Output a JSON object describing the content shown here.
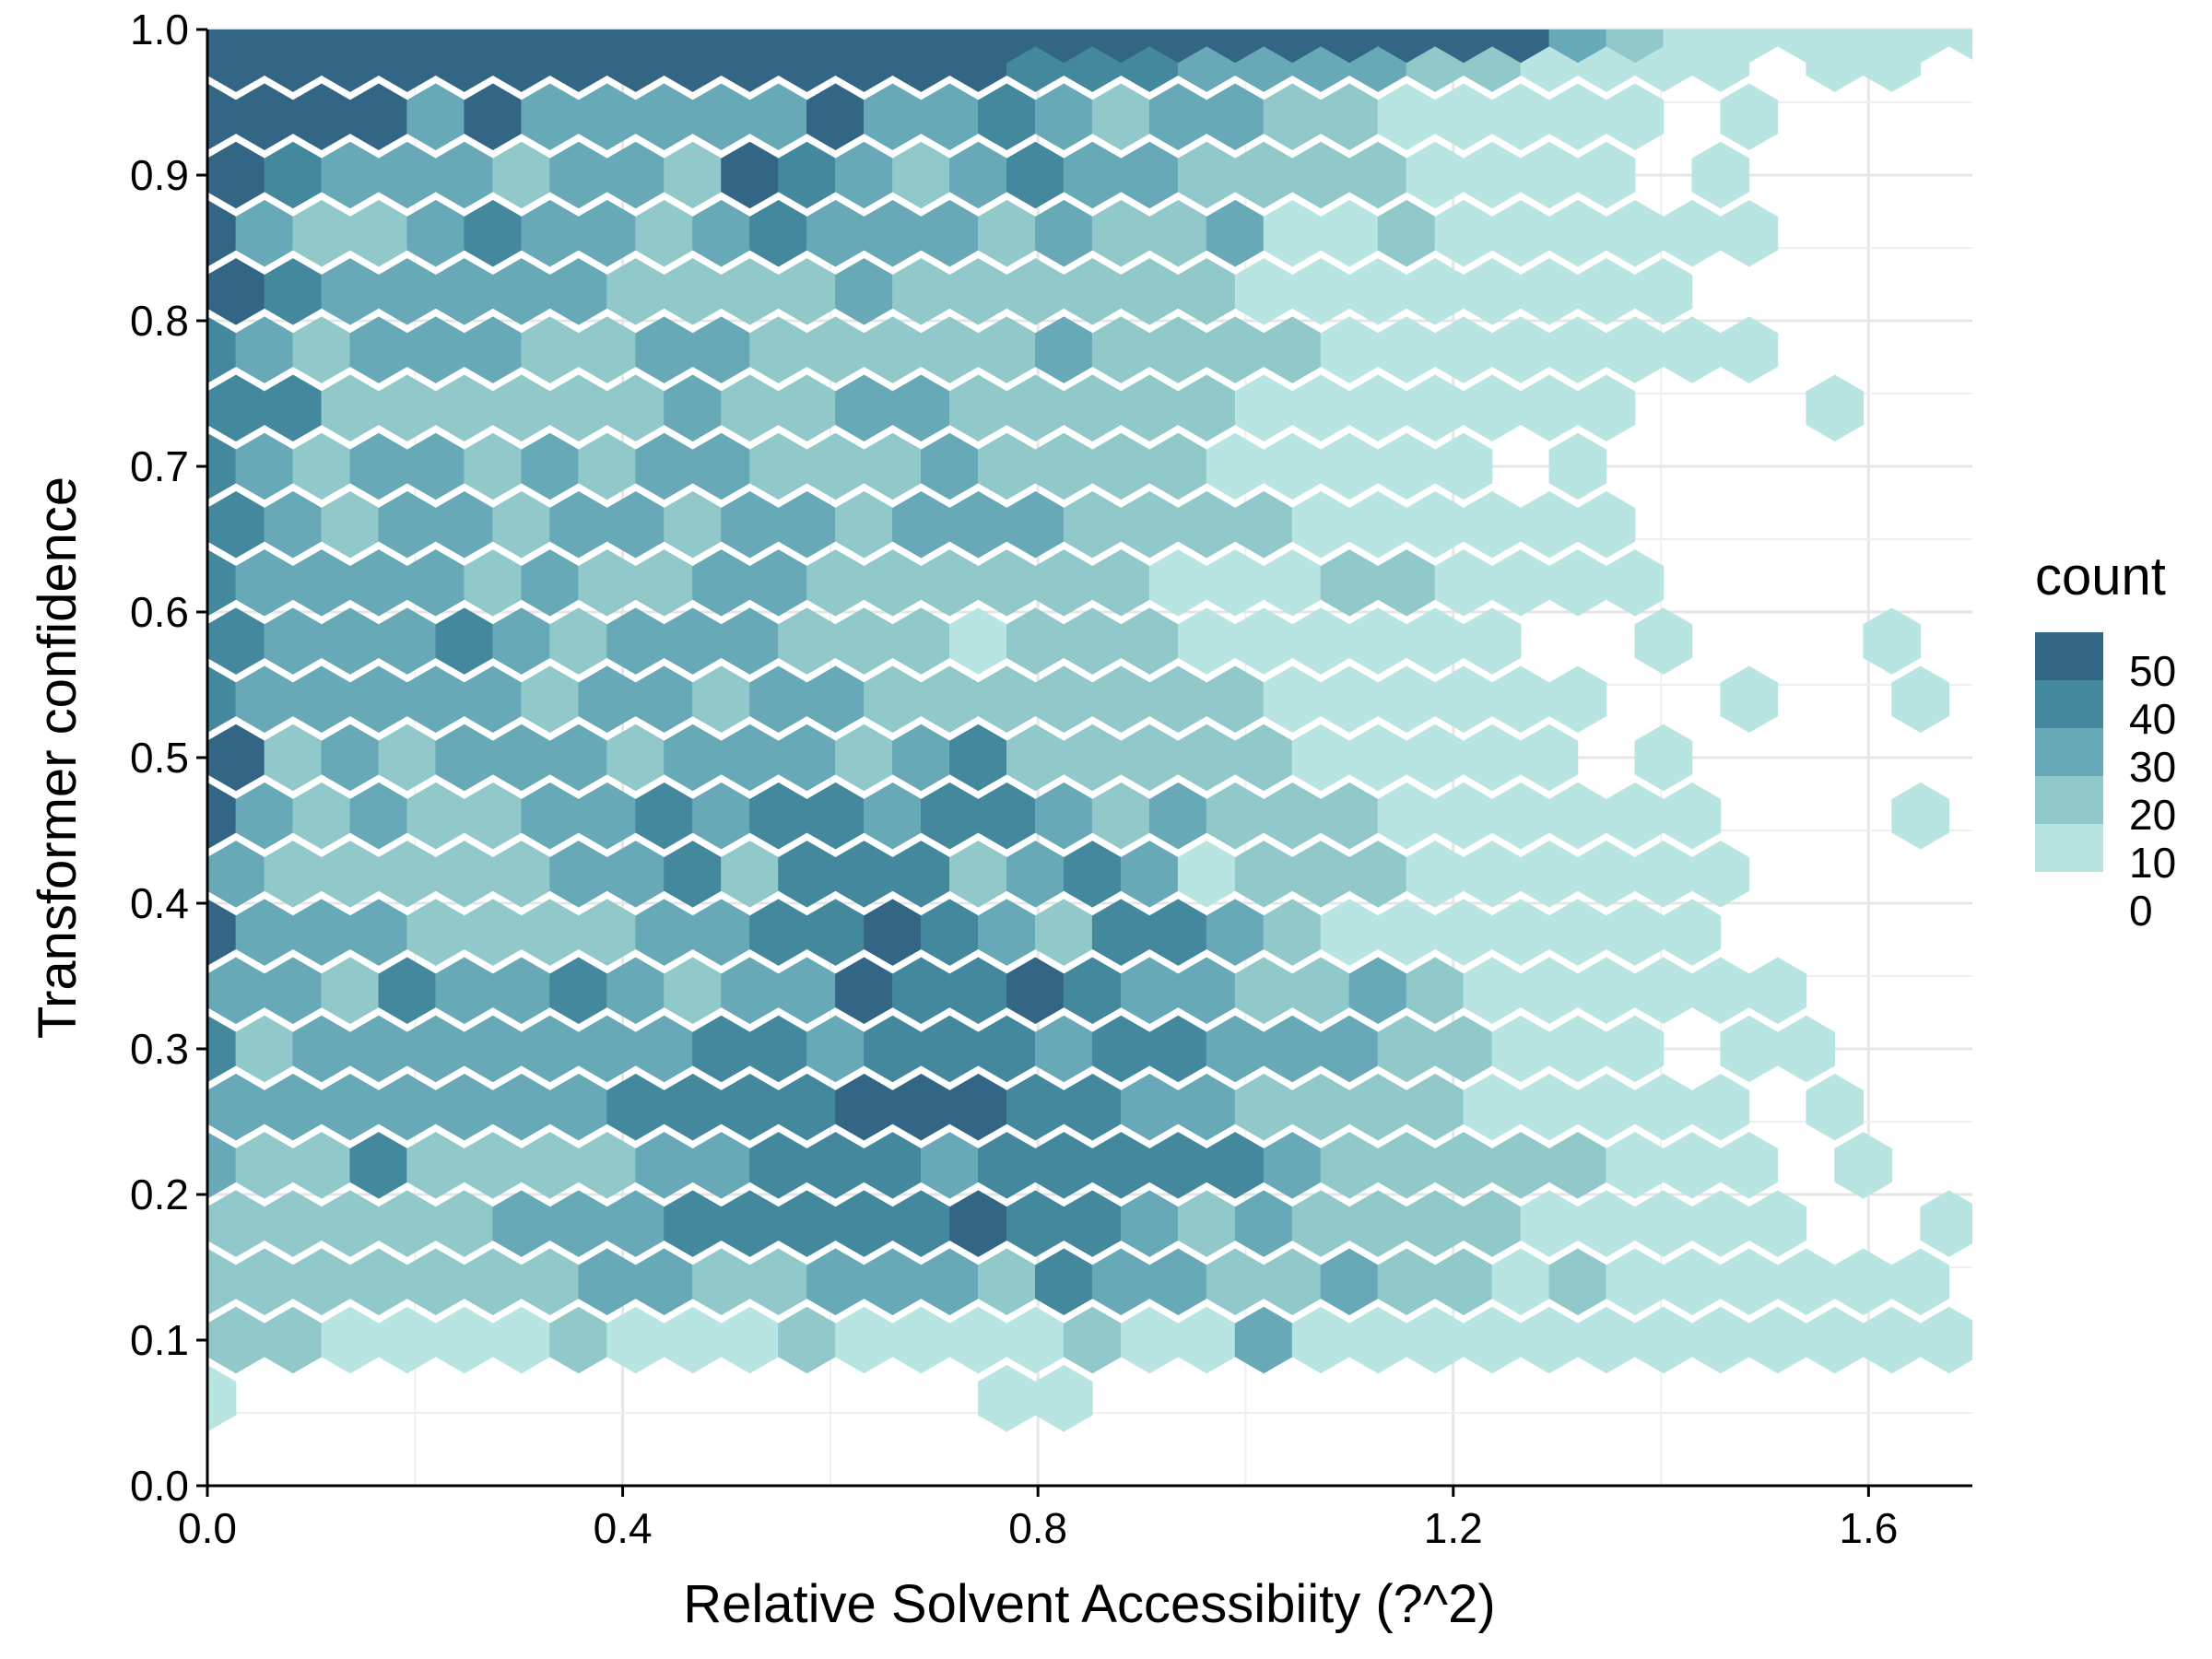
{
  "chart_data": {
    "type": "hexbin",
    "xlabel": "Relative Solvent Accessibiity (?^2)",
    "ylabel": "Transformer confidence",
    "xlim": [
      0.0,
      1.7
    ],
    "ylim": [
      0.0,
      1.0
    ],
    "x_ticks": [
      0.0,
      0.4,
      0.8,
      1.2,
      1.6
    ],
    "x_tick_labels": [
      "0.0",
      "0.4",
      "0.8",
      "1.2",
      "1.6"
    ],
    "y_ticks": [
      0.0,
      0.1,
      0.2,
      0.3,
      0.4,
      0.5,
      0.6,
      0.7,
      0.8,
      0.9,
      1.0
    ],
    "y_tick_labels": [
      "0.0",
      "0.1",
      "0.2",
      "0.3",
      "0.4",
      "0.5",
      "0.6",
      "0.7",
      "0.8",
      "0.9",
      "1.0"
    ],
    "grid": true,
    "legend": {
      "title": "count",
      "position": "right",
      "labels": [
        "50",
        "40",
        "30",
        "20",
        "10",
        "0"
      ],
      "colors": [
        "#336685",
        "#44889e",
        "#68a9b7",
        "#91c8ca",
        "#b8e4e2"
      ],
      "breaks": [
        0,
        10,
        20,
        30,
        40,
        50
      ]
    },
    "hex_size_x": 0.0275,
    "hex_rows": [
      {
        "y": 0.06,
        "x0": 0.0,
        "counts": [
          3,
          0,
          0,
          0,
          0,
          0,
          0,
          0,
          0,
          0,
          0,
          0,
          0,
          0,
          2,
          2,
          0,
          0,
          0,
          0,
          0,
          0,
          0,
          0,
          0,
          0,
          0,
          0,
          0,
          0,
          0,
          0,
          0,
          0,
          0,
          0
        ]
      },
      {
        "y": 0.1,
        "x0": 0.0275,
        "counts": [
          14,
          12,
          6,
          5,
          4,
          6,
          12,
          8,
          5,
          6,
          14,
          8,
          6,
          5,
          6,
          14,
          8,
          6,
          22,
          8,
          5,
          6,
          4,
          5,
          4,
          4,
          3,
          2,
          3,
          2,
          4,
          0,
          4,
          0,
          3,
          0,
          0,
          0,
          0,
          0,
          0,
          0,
          0,
          0,
          0,
          3,
          0,
          0,
          0,
          0,
          0,
          0,
          0,
          0,
          3
        ]
      },
      {
        "y": 0.14,
        "x0": 0.0,
        "counts": [
          16,
          14,
          12,
          14,
          14,
          16,
          18,
          22,
          24,
          16,
          18,
          22,
          26,
          24,
          18,
          32,
          24,
          20,
          16,
          14,
          24,
          12,
          10,
          8,
          10,
          6,
          6,
          5,
          4,
          3,
          4,
          0,
          3,
          3,
          2,
          0,
          3,
          0,
          3,
          0,
          0,
          0,
          0,
          0,
          0,
          0,
          0,
          0,
          0,
          0,
          0,
          0,
          0,
          2
        ]
      },
      {
        "y": 0.18,
        "x0": 0.0275,
        "counts": [
          18,
          12,
          14,
          16,
          18,
          20,
          22,
          26,
          34,
          30,
          32,
          34,
          38,
          40,
          34,
          32,
          22,
          18,
          24,
          16,
          14,
          12,
          10,
          8,
          6,
          6,
          5,
          4,
          0,
          0,
          2,
          3,
          2,
          0,
          2,
          0,
          0,
          0,
          0,
          0,
          0,
          0,
          0,
          0,
          0,
          0,
          0,
          0,
          0,
          0,
          0
        ]
      },
      {
        "y": 0.22,
        "x0": 0.0,
        "counts": [
          22,
          18,
          16,
          30,
          18,
          14,
          18,
          12,
          24,
          28,
          32,
          30,
          34,
          26,
          30,
          34,
          32,
          36,
          30,
          26,
          16,
          14,
          12,
          18,
          12,
          6,
          5,
          4,
          0,
          3,
          0,
          0,
          0,
          0,
          0,
          0,
          0,
          0,
          0,
          0,
          0,
          0,
          0,
          0,
          0,
          0,
          0,
          0,
          0,
          0,
          0,
          0,
          0,
          0,
          0,
          0,
          0,
          0,
          0,
          0,
          0,
          0,
          3
        ]
      },
      {
        "y": 0.26,
        "x0": 0.0275,
        "counts": [
          26,
          22,
          20,
          22,
          24,
          28,
          26,
          30,
          32,
          36,
          38,
          42,
          44,
          40,
          36,
          38,
          28,
          24,
          18,
          16,
          14,
          12,
          8,
          6,
          5,
          3,
          3,
          0,
          3,
          0,
          0,
          0,
          0,
          0,
          0,
          0,
          0,
          0,
          0,
          3
        ]
      },
      {
        "y": 0.3,
        "x0": 0.0,
        "counts": [
          38,
          18,
          20,
          22,
          24,
          20,
          26,
          24,
          22,
          30,
          34,
          28,
          30,
          32,
          30,
          26,
          32,
          36,
          22,
          20,
          24,
          16,
          12,
          6,
          5,
          4,
          0,
          2,
          3,
          0,
          0,
          0,
          0,
          0,
          0,
          0,
          0,
          0,
          0,
          0,
          0,
          0,
          0
        ]
      },
      {
        "y": 0.34,
        "x0": 0.0275,
        "counts": [
          28,
          20,
          14,
          30,
          22,
          24,
          32,
          22,
          14,
          26,
          28,
          40,
          32,
          34,
          44,
          30,
          26,
          22,
          16,
          18,
          20,
          12,
          8,
          6,
          5,
          3,
          2,
          3,
          0,
          0,
          0,
          0,
          0,
          0,
          3,
          0,
          0,
          3
        ]
      },
      {
        "y": 0.38,
        "x0": 0.0,
        "counts": [
          40,
          26,
          22,
          20,
          18,
          14,
          12,
          18,
          20,
          24,
          30,
          34,
          44,
          32,
          26,
          18,
          30,
          34,
          26,
          12,
          8,
          6,
          5,
          4,
          3,
          2,
          2,
          0,
          0,
          0,
          0,
          0,
          0,
          0,
          0,
          0,
          0,
          0,
          0,
          0,
          0,
          0,
          0,
          3
        ]
      },
      {
        "y": 0.42,
        "x0": 0.0275,
        "counts": [
          26,
          14,
          18,
          12,
          14,
          16,
          22,
          24,
          34,
          12,
          32,
          30,
          34,
          18,
          26,
          32,
          20,
          4,
          14,
          12,
          10,
          8,
          6,
          5,
          4,
          2,
          3,
          0,
          0,
          0,
          0,
          0,
          0,
          0,
          0,
          0,
          0,
          0,
          0,
          0,
          0,
          0,
          0,
          0,
          2,
          0,
          0,
          0,
          0,
          3
        ]
      },
      {
        "y": 0.46,
        "x0": 0.0,
        "counts": [
          42,
          24,
          18,
          22,
          14,
          12,
          20,
          24,
          34,
          26,
          32,
          34,
          28,
          30,
          34,
          22,
          18,
          24,
          14,
          12,
          10,
          8,
          6,
          4,
          3,
          2,
          3,
          0,
          0,
          0,
          2,
          0,
          0,
          0,
          0,
          0,
          0,
          0,
          0,
          0,
          0,
          0,
          0,
          0,
          0,
          0,
          3,
          3,
          0
        ]
      },
      {
        "y": 0.5,
        "x0": 0.0275,
        "counts": [
          40,
          18,
          20,
          16,
          22,
          20,
          24,
          18,
          20,
          24,
          22,
          16,
          20,
          36,
          18,
          16,
          14,
          12,
          10,
          8,
          6,
          5,
          4,
          3,
          0,
          3,
          0,
          0,
          0,
          0,
          0,
          0,
          0,
          0,
          0,
          3,
          0,
          0,
          0,
          0,
          0,
          0,
          0,
          0,
          0,
          3
        ]
      },
      {
        "y": 0.54,
        "x0": 0.0,
        "counts": [
          36,
          22,
          20,
          22,
          24,
          20,
          14,
          22,
          20,
          18,
          22,
          20,
          18,
          16,
          14,
          12,
          16,
          14,
          10,
          8,
          6,
          5,
          4,
          3,
          4,
          0,
          0,
          3,
          0,
          0,
          3,
          0,
          0,
          0,
          2,
          0,
          0,
          0,
          0,
          0,
          0,
          0,
          0,
          0,
          0,
          0,
          3
        ]
      },
      {
        "y": 0.58,
        "x0": 0.0275,
        "counts": [
          38,
          22,
          20,
          24,
          34,
          22,
          18,
          24,
          22,
          20,
          18,
          14,
          12,
          6,
          14,
          12,
          10,
          8,
          6,
          5,
          4,
          3,
          2,
          0,
          0,
          2,
          0,
          0,
          0,
          3,
          0,
          0,
          0,
          0,
          0,
          0,
          0,
          0,
          0,
          0,
          0,
          0,
          0,
          0,
          0,
          0,
          0,
          3
        ]
      },
      {
        "y": 0.62,
        "x0": 0.0,
        "counts": [
          36,
          24,
          20,
          22,
          24,
          18,
          20,
          14,
          18,
          22,
          20,
          16,
          18,
          12,
          14,
          16,
          12,
          6,
          8,
          6,
          14,
          12,
          6,
          5,
          4,
          3,
          0,
          0,
          0,
          0,
          0,
          0,
          0,
          0,
          0,
          0,
          0,
          0,
          0,
          0,
          0,
          0,
          0,
          0,
          0,
          0,
          0,
          0,
          0,
          0,
          0,
          0,
          3
        ]
      },
      {
        "y": 0.66,
        "x0": 0.0275,
        "counts": [
          30,
          20,
          18,
          22,
          20,
          16,
          22,
          24,
          12,
          20,
          22,
          18,
          24,
          22,
          26,
          18,
          16,
          14,
          12,
          6,
          8,
          6,
          5,
          4,
          3,
          0,
          0,
          0,
          0,
          0,
          0,
          0,
          0,
          0,
          0,
          0,
          0,
          0,
          0,
          0,
          0,
          0,
          0,
          0,
          0,
          0,
          0,
          0,
          0,
          0,
          3
        ]
      },
      {
        "y": 0.7,
        "x0": 0.0,
        "counts": [
          38,
          20,
          14,
          22,
          20,
          16,
          24,
          18,
          22,
          20,
          16,
          14,
          18,
          20,
          16,
          14,
          12,
          10,
          8,
          6,
          5,
          4,
          3,
          0,
          3,
          0,
          0,
          0,
          0,
          0,
          0,
          0,
          0,
          0,
          0,
          3
        ]
      },
      {
        "y": 0.74,
        "x0": 0.0275,
        "counts": [
          34,
          30,
          18,
          16,
          14,
          12,
          16,
          14,
          22,
          16,
          18,
          22,
          20,
          16,
          18,
          14,
          12,
          10,
          6,
          8,
          6,
          4,
          4,
          2,
          3,
          0,
          0,
          0,
          3
        ]
      },
      {
        "y": 0.78,
        "x0": 0.0,
        "counts": [
          38,
          20,
          18,
          20,
          24,
          22,
          18,
          14,
          20,
          22,
          16,
          18,
          14,
          12,
          14,
          20,
          18,
          10,
          16,
          12,
          8,
          6,
          4,
          5,
          4,
          3,
          4,
          2,
          0,
          0,
          0,
          0,
          0,
          0,
          0,
          0,
          0,
          0,
          0,
          0,
          0,
          0,
          0,
          0,
          0,
          0,
          0,
          3
        ]
      },
      {
        "y": 0.82,
        "x0": 0.0275,
        "counts": [
          42,
          30,
          22,
          20,
          22,
          24,
          20,
          18,
          16,
          14,
          18,
          20,
          12,
          10,
          14,
          12,
          16,
          10,
          8,
          6,
          6,
          5,
          4,
          3,
          3,
          2
        ]
      },
      {
        "y": 0.86,
        "x0": 0.0,
        "counts": [
          44,
          26,
          18,
          12,
          22,
          32,
          24,
          20,
          18,
          20,
          34,
          22,
          24,
          22,
          16,
          20,
          14,
          18,
          22,
          6,
          4,
          16,
          8,
          6,
          5,
          4,
          3,
          3,
          0,
          0,
          0,
          0,
          0,
          0,
          0,
          0,
          0,
          0,
          0,
          3
        ]
      },
      {
        "y": 0.9,
        "x0": 0.0275,
        "counts": [
          44,
          36,
          26,
          20,
          22,
          18,
          20,
          22,
          18,
          46,
          32,
          26,
          18,
          22,
          30,
          20,
          22,
          18,
          12,
          14,
          16,
          8,
          6,
          5,
          4,
          0,
          3,
          0,
          0,
          0,
          0,
          0,
          0,
          0,
          0,
          3,
          0,
          0,
          3
        ]
      },
      {
        "y": 0.94,
        "x0": 0.0,
        "counts": [
          46,
          42,
          40,
          46,
          24,
          44,
          22,
          20,
          24,
          22,
          26,
          44,
          28,
          24,
          34,
          20,
          14,
          22,
          20,
          18,
          12,
          6,
          4,
          5,
          3,
          4,
          0,
          3,
          0,
          0,
          0,
          0,
          0,
          0,
          0,
          0,
          0,
          0,
          0,
          0,
          0,
          3
        ]
      },
      {
        "y": 0.98,
        "x0": 0.0275,
        "counts": [
          48,
          50,
          46,
          44,
          46,
          48,
          44,
          42,
          46,
          44,
          48,
          46,
          44,
          40,
          36,
          34,
          32,
          28,
          26,
          22,
          20,
          18,
          12,
          6,
          5,
          3,
          4,
          0,
          3,
          3,
          0,
          0,
          0,
          3,
          3
        ]
      },
      {
        "y": 1.0,
        "x0": 0.0,
        "counts": [
          48,
          50,
          46,
          44,
          46,
          48,
          44,
          46,
          48,
          44,
          46,
          48,
          42,
          44,
          46,
          48,
          44,
          46,
          48,
          42,
          44,
          46,
          48,
          44,
          20,
          14,
          6,
          5,
          4,
          3,
          4,
          5,
          4,
          3,
          4,
          3,
          0
        ]
      }
    ]
  }
}
